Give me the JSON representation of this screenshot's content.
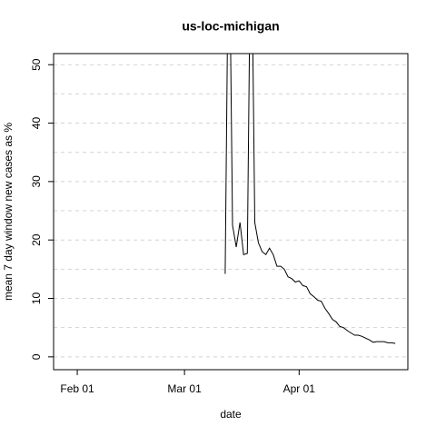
{
  "chart_data": {
    "type": "line",
    "title": "us-loc-michigan",
    "xlabel": "date",
    "ylabel": "mean  7  day window new cases as %",
    "x": [
      72,
      73,
      74,
      75,
      76,
      77,
      78,
      79,
      80,
      81,
      82,
      83,
      84,
      85,
      86,
      87,
      88,
      89,
      90,
      91,
      92,
      93,
      94,
      95,
      96,
      97,
      98,
      99,
      100,
      101,
      102,
      103,
      104,
      105,
      106,
      107,
      108,
      109,
      110,
      111,
      112,
      113,
      114,
      115,
      116,
      117,
      118
    ],
    "series": [
      {
        "name": "us-loc-michigan",
        "color": "#000000",
        "values": [
          14.2,
          80,
          22.5,
          18.8,
          23,
          17.5,
          17.7,
          80,
          23,
          19.5,
          18,
          17.5,
          18.6,
          17.5,
          15.5,
          15.5,
          15,
          13.7,
          13.4,
          12.8,
          13,
          12.2,
          12.0,
          10.8,
          10.3,
          9.7,
          9.5,
          8.3,
          7.4,
          6.4,
          6.0,
          5.2,
          5.0,
          4.5,
          4.1,
          3.7,
          3.7,
          3.5,
          3.2,
          2.9,
          2.5,
          2.6,
          2.6,
          2.6,
          2.4,
          2.4,
          2.3
        ]
      }
    ],
    "xlim": [
      25.6,
      121.4
    ],
    "xticks": [
      {
        "value": 32,
        "label": "Feb 01"
      },
      {
        "value": 61,
        "label": "Mar 01"
      },
      {
        "value": 92,
        "label": "Apr 01"
      }
    ],
    "ylim": [
      -2.2,
      51.9
    ],
    "yticks": [
      0,
      10,
      20,
      30,
      40,
      50
    ],
    "yminor": [
      5,
      15,
      25,
      35,
      45
    ],
    "grid": true
  }
}
